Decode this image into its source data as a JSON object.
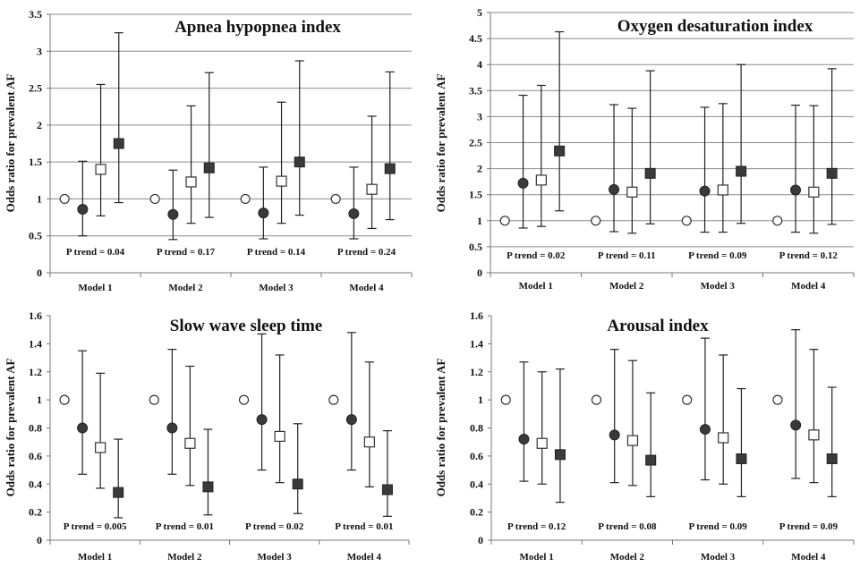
{
  "chart_data": [
    {
      "type": "scatter",
      "title": "Apnea hypopnea index",
      "ylabel": "Odds ratio for prevalent AF",
      "ylim": [
        0,
        3.5
      ],
      "yticks": [
        "0",
        "0.5",
        "1",
        "1.5",
        "2",
        "2.5",
        "3",
        "3.5"
      ],
      "grid": true,
      "categories": [
        "Model 1",
        "Model 2",
        "Model 3",
        "Model 4"
      ],
      "p_trends": [
        "P trend = 0.04",
        "P trend = 0.17",
        "P trend = 0.14",
        "P trend = 0.24"
      ],
      "series": [
        {
          "marker": "open-circle",
          "values": [
            1,
            1,
            1,
            1
          ],
          "lower": [
            null,
            null,
            null,
            null
          ],
          "upper": [
            null,
            null,
            null,
            null
          ]
        },
        {
          "marker": "filled-circle",
          "values": [
            0.86,
            0.79,
            0.81,
            0.8
          ],
          "lower": [
            0.5,
            0.45,
            0.46,
            0.46
          ],
          "upper": [
            1.51,
            1.39,
            1.43,
            1.43
          ]
        },
        {
          "marker": "open-square",
          "values": [
            1.4,
            1.23,
            1.24,
            1.13
          ],
          "lower": [
            0.77,
            0.67,
            0.67,
            0.6
          ],
          "upper": [
            2.55,
            2.26,
            2.31,
            2.12
          ]
        },
        {
          "marker": "filled-square",
          "values": [
            1.75,
            1.42,
            1.5,
            1.41
          ],
          "lower": [
            0.95,
            0.75,
            0.78,
            0.72
          ],
          "upper": [
            3.25,
            2.71,
            2.87,
            2.72
          ]
        }
      ]
    },
    {
      "type": "scatter",
      "title": "Oxygen desaturation index",
      "ylabel": "Odds ratio for prevalent AF",
      "ylim": [
        0,
        5
      ],
      "yticks": [
        "0",
        "0.5",
        "1",
        "1.5",
        "2",
        "2.5",
        "3",
        "3.5",
        "4",
        "4.5",
        "5"
      ],
      "grid": true,
      "categories": [
        "Model 1",
        "Model 2",
        "Model 3",
        "Model 4"
      ],
      "p_trends": [
        "P trend = 0.02",
        "P trend = 0.11",
        "P trend = 0.09",
        "P trend = 0.12"
      ],
      "series": [
        {
          "marker": "open-circle",
          "values": [
            1,
            1,
            1,
            1
          ],
          "lower": [
            null,
            null,
            null,
            null
          ],
          "upper": [
            null,
            null,
            null,
            null
          ]
        },
        {
          "marker": "filled-circle",
          "values": [
            1.72,
            1.6,
            1.57,
            1.59
          ],
          "lower": [
            0.86,
            0.79,
            0.78,
            0.78
          ],
          "upper": [
            3.41,
            3.23,
            3.18,
            3.22
          ]
        },
        {
          "marker": "open-square",
          "values": [
            1.78,
            1.55,
            1.59,
            1.55
          ],
          "lower": [
            0.89,
            0.76,
            0.78,
            0.76
          ],
          "upper": [
            3.6,
            3.16,
            3.25,
            3.21
          ]
        },
        {
          "marker": "filled-square",
          "values": [
            2.34,
            1.91,
            1.95,
            1.91
          ],
          "lower": [
            1.19,
            0.94,
            0.95,
            0.93
          ],
          "upper": [
            4.63,
            3.88,
            4.0,
            3.92
          ]
        }
      ]
    },
    {
      "type": "scatter",
      "title": "Slow wave sleep time",
      "ylabel": "Odds ratio for prevalent AF",
      "ylim": [
        0,
        1.6
      ],
      "yticks": [
        "0",
        "0.2",
        "0.4",
        "0.6",
        "0.8",
        "1",
        "1.2",
        "1.4",
        "1.6"
      ],
      "grid": false,
      "categories": [
        "Model 1",
        "Model 2",
        "Model 3",
        "Model 4"
      ],
      "p_trends": [
        "P trend = 0.005",
        "P trend = 0.01",
        "P trend = 0.02",
        "P trend = 0.01"
      ],
      "series": [
        {
          "marker": "open-circle",
          "values": [
            1,
            1,
            1,
            1
          ],
          "lower": [
            null,
            null,
            null,
            null
          ],
          "upper": [
            null,
            null,
            null,
            null
          ]
        },
        {
          "marker": "filled-circle",
          "values": [
            0.8,
            0.8,
            0.86,
            0.86
          ],
          "lower": [
            0.47,
            0.47,
            0.5,
            0.5
          ],
          "upper": [
            1.35,
            1.36,
            1.47,
            1.48
          ]
        },
        {
          "marker": "open-square",
          "values": [
            0.66,
            0.69,
            0.74,
            0.7
          ],
          "lower": [
            0.37,
            0.39,
            0.41,
            0.38
          ],
          "upper": [
            1.19,
            1.24,
            1.32,
            1.27
          ]
        },
        {
          "marker": "filled-square",
          "values": [
            0.34,
            0.38,
            0.4,
            0.36
          ],
          "lower": [
            0.16,
            0.18,
            0.19,
            0.17
          ],
          "upper": [
            0.72,
            0.79,
            0.83,
            0.78
          ]
        }
      ]
    },
    {
      "type": "scatter",
      "title": "Arousal index",
      "ylabel": "Odds ratio for prevalent AF",
      "ylim": [
        0,
        1.6
      ],
      "yticks": [
        "0",
        "0.2",
        "0.4",
        "0.6",
        "0.8",
        "1",
        "1.2",
        "1.4",
        "1.6"
      ],
      "grid": false,
      "categories": [
        "Model 1",
        "Model 2",
        "Model 3",
        "Model 4"
      ],
      "p_trends": [
        "P trend = 0.12",
        "P trend = 0.08",
        "P trend = 0.09",
        "P trend = 0.09"
      ],
      "series": [
        {
          "marker": "open-circle",
          "values": [
            1,
            1,
            1,
            1
          ],
          "lower": [
            null,
            null,
            null,
            null
          ],
          "upper": [
            null,
            null,
            null,
            null
          ]
        },
        {
          "marker": "filled-circle",
          "values": [
            0.72,
            0.75,
            0.79,
            0.82
          ],
          "lower": [
            0.42,
            0.41,
            0.43,
            0.44
          ],
          "upper": [
            1.27,
            1.36,
            1.44,
            1.5
          ]
        },
        {
          "marker": "open-square",
          "values": [
            0.69,
            0.71,
            0.73,
            0.75
          ],
          "lower": [
            0.4,
            0.39,
            0.4,
            0.41
          ],
          "upper": [
            1.2,
            1.28,
            1.32,
            1.36
          ]
        },
        {
          "marker": "filled-square",
          "values": [
            0.61,
            0.57,
            0.58,
            0.58
          ],
          "lower": [
            0.27,
            0.31,
            0.31,
            0.31
          ],
          "upper": [
            1.22,
            1.05,
            1.08,
            1.09
          ]
        }
      ]
    }
  ]
}
